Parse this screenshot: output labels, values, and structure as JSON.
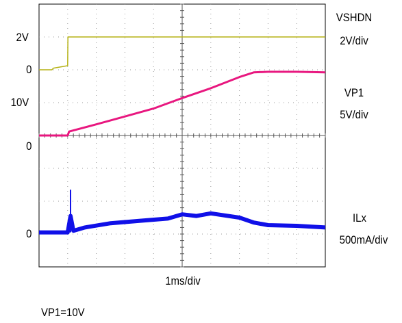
{
  "chart_data": {
    "type": "line",
    "xlabel": "1ms/div",
    "note": "VP1=10V",
    "x_divisions": 10,
    "y_divisions": 8,
    "series": [
      {
        "name": "VSHDN",
        "scale": "2V/div",
        "zero_label": "0",
        "level_label": "2V",
        "color": "#b5b214",
        "x": [
          0,
          0.45,
          0.5,
          1.0,
          1.01,
          10
        ],
        "y": [
          0,
          0,
          0.1,
          0.25,
          2.0,
          2.0
        ]
      },
      {
        "name": "VP1",
        "scale": "5V/div",
        "zero_label": "0",
        "level_label": "10V",
        "color": "#e8177f",
        "x": [
          0,
          1.0,
          1.05,
          2.0,
          3.0,
          4.0,
          5.0,
          6.0,
          7.0,
          7.5,
          8.0,
          9.0,
          10.0
        ],
        "y": [
          0,
          0,
          0.6,
          1.7,
          2.9,
          4.1,
          5.7,
          7.2,
          8.9,
          9.6,
          9.7,
          9.7,
          9.6
        ]
      },
      {
        "name": "ILx",
        "scale": "500mA/div",
        "zero_label": "0",
        "color": "#1010e8",
        "x": [
          0,
          1.0,
          1.1,
          1.2,
          1.6,
          2.5,
          3.5,
          4.5,
          5.0,
          5.5,
          6.0,
          7.0,
          7.5,
          8.0,
          9.0,
          10.0
        ],
        "y": [
          0,
          0,
          0.5,
          0.05,
          0.15,
          0.28,
          0.35,
          0.42,
          0.55,
          0.5,
          0.58,
          0.45,
          0.3,
          0.22,
          0.2,
          0.15
        ]
      }
    ]
  }
}
